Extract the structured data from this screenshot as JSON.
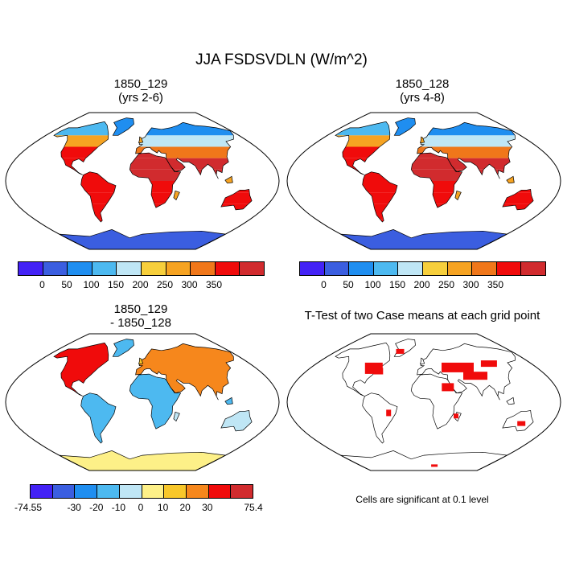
{
  "main_title": "JJA FSDSVDLN (W/m^2)",
  "chart_data": [
    {
      "type": "heatmap",
      "panel": "top-left",
      "title_line1": "1850_129",
      "title_line2": "(yrs 2-6)",
      "projection": "Robinson",
      "colorbar": {
        "colors": [
          "#4322f5",
          "#3b5ee0",
          "#1f8ef0",
          "#4db9f0",
          "#bfe6f5",
          "#f7cf3c",
          "#f6a322",
          "#f0771a",
          "#f00b0b",
          "#d12b2e"
        ],
        "ticks": [
          "0",
          "50",
          "100",
          "150",
          "200",
          "250",
          "300",
          "350"
        ]
      },
      "description_values": {
        "min": 0,
        "max": 400
      }
    },
    {
      "type": "heatmap",
      "panel": "top-right",
      "title_line1": "1850_128",
      "title_line2": "(yrs 4-8)",
      "projection": "Robinson",
      "colorbar": {
        "colors": [
          "#4322f5",
          "#3b5ee0",
          "#1f8ef0",
          "#4db9f0",
          "#bfe6f5",
          "#f7cf3c",
          "#f6a322",
          "#f0771a",
          "#f00b0b",
          "#d12b2e"
        ],
        "ticks": [
          "0",
          "50",
          "100",
          "150",
          "200",
          "250",
          "300",
          "350"
        ]
      }
    },
    {
      "type": "heatmap",
      "panel": "bottom-left",
      "title_line1": "1850_129",
      "title_line2": "- 1850_128",
      "projection": "Robinson",
      "colorbar": {
        "colors": [
          "#4322f5",
          "#3b5ee0",
          "#1f8ef0",
          "#4db9f0",
          "#bfe6f5",
          "#fdf088",
          "#f8c72a",
          "#f6871c",
          "#f00b0b",
          "#d12b2e"
        ],
        "ticks": [
          "-74.55",
          "-30",
          "-20",
          "-10",
          "0",
          "10",
          "20",
          "30",
          "75.4"
        ]
      }
    },
    {
      "type": "heatmap",
      "panel": "bottom-right",
      "title": "T-Test of two Case means at each grid point",
      "projection": "Robinson",
      "significance_color": "#f00b0b",
      "footnote": "Cells are significant at 0.1 level"
    }
  ]
}
